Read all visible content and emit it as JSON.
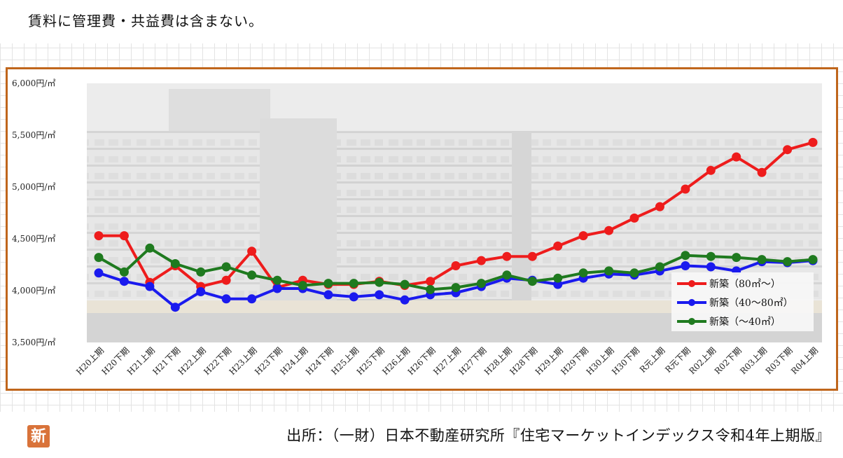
{
  "note": "賃料に管理費・共益費は含まない。",
  "source": "出所：（一財）日本不動産研究所『住宅マーケットインデックス令和4年上期版』",
  "logo": "新",
  "colors": {
    "frame": "#c0661c",
    "series1": "#ee1c1c",
    "series2": "#1a1aee",
    "series3": "#1f7a1f"
  },
  "chart_data": {
    "type": "line",
    "title": "",
    "xlabel": "",
    "ylabel": "",
    "ylim": [
      3500,
      6000
    ],
    "yticks": [
      3500,
      4000,
      4500,
      5000,
      5500,
      6000
    ],
    "ytick_labels": [
      "3,500円/㎡",
      "4,000円/㎡",
      "4,500円/㎡",
      "5,000円/㎡",
      "5,500円/㎡",
      "6,000円/㎡"
    ],
    "grid": false,
    "legend_position": "bottom-right",
    "categories": [
      "H20上期",
      "H20下期",
      "H21上期",
      "H21下期",
      "H22上期",
      "H22下期",
      "H23上期",
      "H23下期",
      "H24上期",
      "H24下期",
      "H25上期",
      "H25下期",
      "H26上期",
      "H26下期",
      "H27上期",
      "H27下期",
      "H28上期",
      "H28下期",
      "H29上期",
      "H29下期",
      "H30上期",
      "H30下期",
      "R元上期",
      "R元下期",
      "R02上期",
      "R02下期",
      "R03上期",
      "R03下期",
      "R04上期"
    ],
    "series": [
      {
        "name": "新築（80㎡～）",
        "color": "#ee1c1c",
        "values": [
          4530,
          4530,
          4080,
          4240,
          4040,
          4100,
          4380,
          4030,
          4100,
          4060,
          4060,
          4090,
          4050,
          4090,
          4240,
          4290,
          4330,
          4330,
          4430,
          4530,
          4580,
          4700,
          4810,
          4980,
          5160,
          5290,
          5140,
          5360,
          5430
        ]
      },
      {
        "name": "新築（40～80㎡）",
        "color": "#1a1aee",
        "values": [
          4170,
          4090,
          4040,
          3840,
          3990,
          3920,
          3920,
          4020,
          4020,
          3960,
          3940,
          3960,
          3910,
          3960,
          3980,
          4040,
          4120,
          4100,
          4060,
          4120,
          4160,
          4150,
          4190,
          4240,
          4230,
          4190,
          4280,
          4270,
          4290
        ]
      },
      {
        "name": "新築（～40㎡）",
        "color": "#1f7a1f",
        "values": [
          4320,
          4180,
          4410,
          4260,
          4180,
          4230,
          4150,
          4100,
          4050,
          4070,
          4070,
          4080,
          4060,
          4010,
          4030,
          4070,
          4150,
          4090,
          4120,
          4170,
          4190,
          4170,
          4230,
          4340,
          4330,
          4320,
          4300,
          4280,
          4300
        ]
      }
    ]
  }
}
